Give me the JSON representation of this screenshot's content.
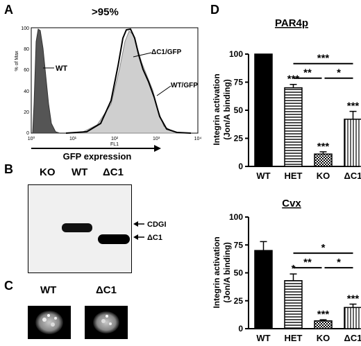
{
  "panels": {
    "a": {
      "letter": "A",
      "title": ">95%",
      "ylabel": "% of Max",
      "fl_label": "FL1",
      "xlabel": "GFP expression",
      "x_ticks": [
        "10⁰",
        "10¹",
        "10²",
        "10³",
        "10⁴"
      ],
      "y_ticks": [
        "0",
        "20",
        "40",
        "60",
        "80",
        "100"
      ],
      "annotations": [
        "WT",
        "ΔC1/GFP",
        "WT/GFP"
      ]
    },
    "b": {
      "letter": "B",
      "lanes": [
        "KO",
        "WT",
        "ΔC1"
      ],
      "band_labels": [
        "CDGI",
        "ΔC1"
      ]
    },
    "c": {
      "letter": "C",
      "cells": [
        "WT",
        "ΔC1"
      ]
    },
    "d": {
      "letter": "D"
    }
  },
  "chart_data": [
    {
      "type": "bar",
      "title": "PAR4p",
      "ylabel": "Integrin activation (Jon/A binding)",
      "categories": [
        "WT",
        "HET",
        "KO",
        "ΔC1"
      ],
      "values": [
        100,
        70,
        11,
        42
      ],
      "errors": [
        0,
        3,
        2,
        7
      ],
      "ylim": [
        0,
        100
      ],
      "yticks": [
        "0",
        "25",
        "50",
        "75",
        "100"
      ],
      "bar_stars": [
        "",
        "***",
        "***",
        "***"
      ],
      "comparisons": [
        {
          "from": "HET",
          "to": "ΔC1",
          "label": "***"
        },
        {
          "from": "HET",
          "to": "KO",
          "label": "**"
        },
        {
          "from": "KO",
          "to": "ΔC1",
          "label": "*"
        }
      ],
      "fills": [
        "solid",
        "hlines",
        "checker",
        "vlines"
      ]
    },
    {
      "type": "bar",
      "title": "Cvx",
      "ylabel": "Integrin activation (Jon/A binding)",
      "categories": [
        "WT",
        "HET",
        "KO",
        "ΔC1"
      ],
      "values": [
        70,
        43,
        7,
        19
      ],
      "errors": [
        8,
        6,
        1,
        3
      ],
      "ylim": [
        0,
        100
      ],
      "yticks": [
        "0",
        "25",
        "50",
        "75",
        "100"
      ],
      "bar_stars": [
        "",
        "*",
        "***",
        "***"
      ],
      "comparisons": [
        {
          "from": "HET",
          "to": "ΔC1",
          "label": "*"
        },
        {
          "from": "HET",
          "to": "KO",
          "label": "**"
        },
        {
          "from": "KO",
          "to": "ΔC1",
          "label": "*"
        }
      ],
      "fills": [
        "solid",
        "hlines",
        "checker",
        "vlines"
      ]
    }
  ]
}
